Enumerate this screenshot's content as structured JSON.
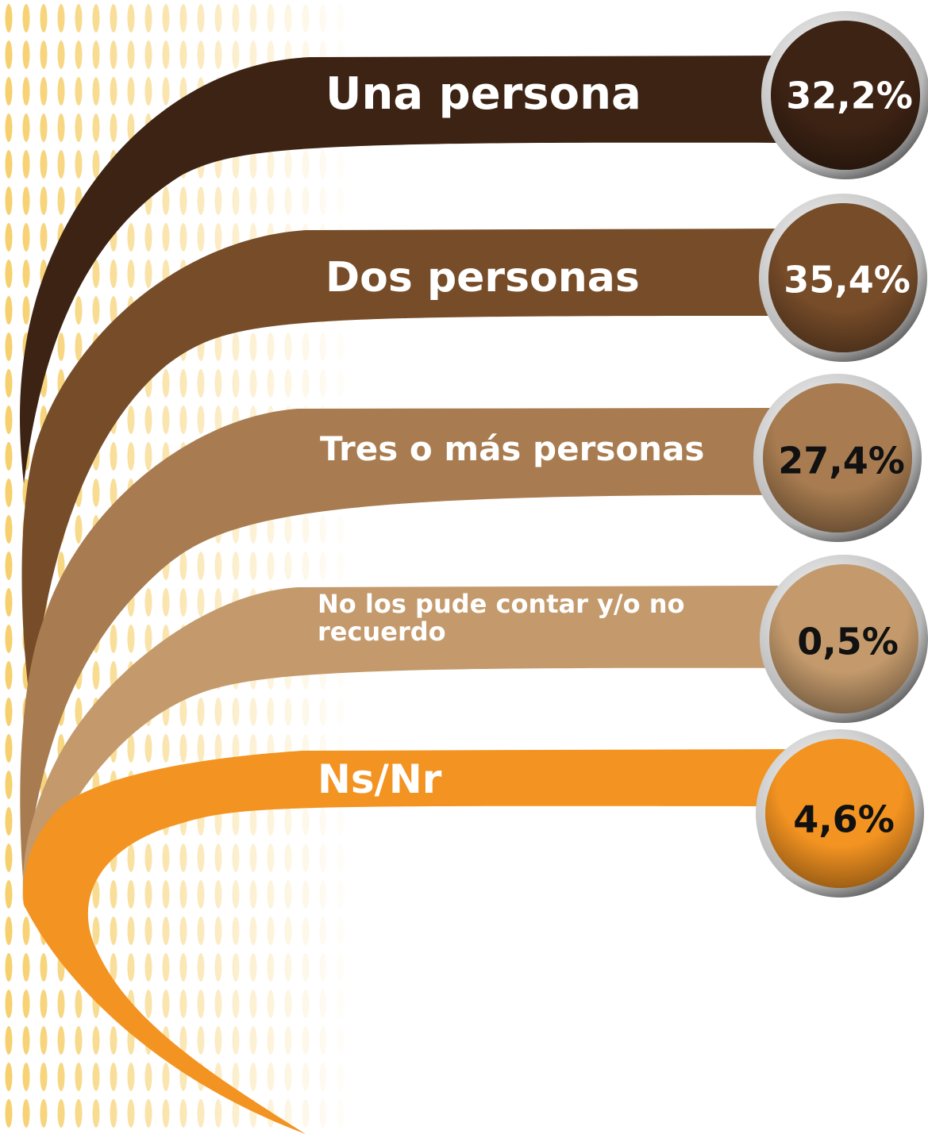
{
  "chart_data": {
    "type": "ribbon",
    "categories": [
      "Una persona",
      "Dos personas",
      "Tres o más personas",
      "No los pude contar y/o no recuerdo",
      "Ns/Nr"
    ],
    "values": [
      32.2,
      35.4,
      27.4,
      0.5,
      4.6
    ],
    "value_labels": [
      "32,2%",
      "35,4%",
      "27,4%",
      "0,5%",
      "4,6%"
    ],
    "colors": [
      "#3d2314",
      "#774c29",
      "#a87c50",
      "#c49a6c",
      "#f39321"
    ],
    "value_label_colors": [
      "#ffffff",
      "#ffffff",
      "#111111",
      "#111111",
      "#111111"
    ]
  }
}
